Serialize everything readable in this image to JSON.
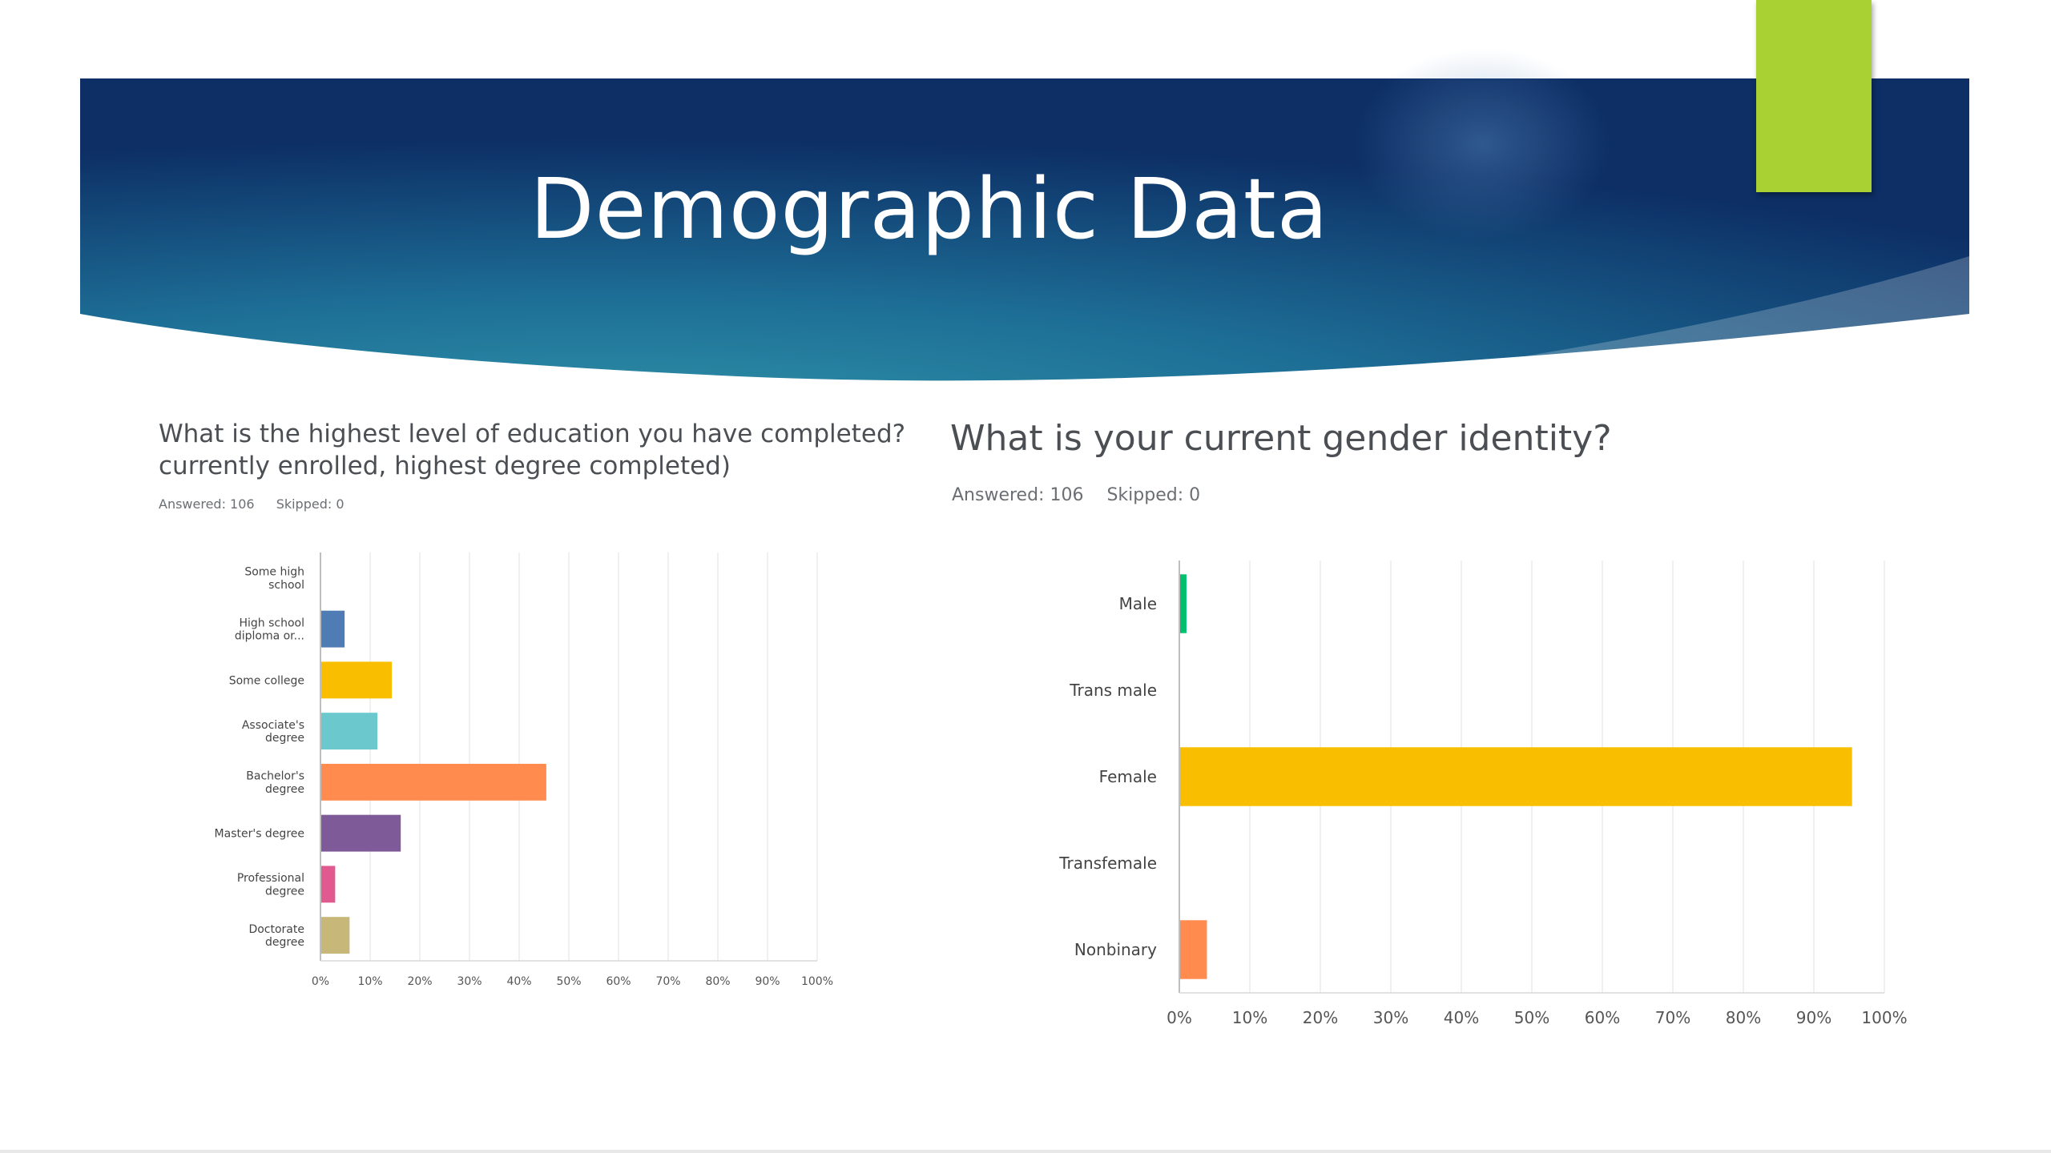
{
  "slide": {
    "title": "Demographic Data",
    "colors": {
      "banner_dark": "#0d2f66",
      "banner_mid": "#1d6e96",
      "banner_teal": "#2f93a8",
      "accent_green": "#a9d134"
    }
  },
  "chart_data": [
    {
      "type": "bar",
      "orientation": "horizontal",
      "title": "What is the highest level of education you have completed? currently enrolled, highest degree completed)",
      "answered_label": "Answered: 106",
      "skipped_label": "Skipped: 0",
      "categories": [
        [
          "Some high",
          "school"
        ],
        [
          "High school",
          "diploma or..."
        ],
        [
          "Some college"
        ],
        [
          "Associate's",
          "degree"
        ],
        [
          "Bachelor's",
          "degree"
        ],
        [
          "Master's degree"
        ],
        [
          "Professional",
          "degree"
        ],
        [
          "Doctorate",
          "degree"
        ]
      ],
      "values": [
        0,
        4.7,
        14.2,
        11.3,
        45.3,
        16.0,
        2.8,
        5.7
      ],
      "colors": [
        "#e0e0e0",
        "#507cb6",
        "#f9be00",
        "#6bc8cd",
        "#ff8b4f",
        "#7f5a98",
        "#e05a8f",
        "#c7b879"
      ],
      "xlim": [
        0,
        100
      ],
      "x_ticks": [
        "0%",
        "10%",
        "20%",
        "30%",
        "40%",
        "50%",
        "60%",
        "70%",
        "80%",
        "90%",
        "100%"
      ],
      "grid": true
    },
    {
      "type": "bar",
      "orientation": "horizontal",
      "title": "What is your current gender identity?",
      "answered_label": "Answered: 106",
      "skipped_label": "Skipped: 0",
      "categories": [
        [
          "Male"
        ],
        [
          "Trans male"
        ],
        [
          "Female"
        ],
        [
          "Transfemale"
        ],
        [
          "Nonbinary"
        ]
      ],
      "values": [
        0.9,
        0,
        95.3,
        0,
        3.8
      ],
      "colors": [
        "#00bf6f",
        "#507cb6",
        "#f9be00",
        "#6bc8cd",
        "#ff8b4f"
      ],
      "xlim": [
        0,
        100
      ],
      "x_ticks": [
        "0%",
        "10%",
        "20%",
        "30%",
        "40%",
        "50%",
        "60%",
        "70%",
        "80%",
        "90%",
        "100%"
      ],
      "grid": true
    }
  ]
}
